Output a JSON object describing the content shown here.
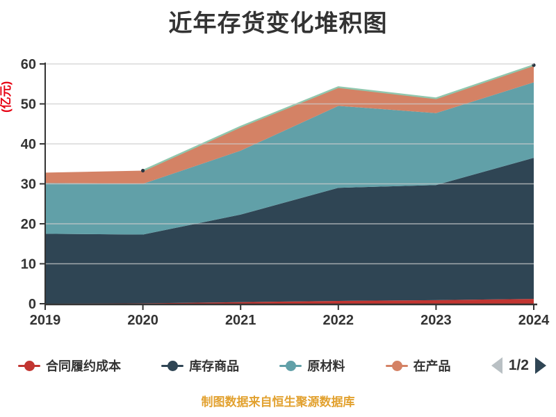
{
  "title": "近年存货变化堆积图",
  "caption": {
    "text": "制图数据来自恒生聚源数据库",
    "color": "#E2A12F"
  },
  "legend": {
    "pager": {
      "text": "1/2",
      "prev_icon": "left-triangle",
      "next_icon": "right-triangle",
      "prev_color": "#b9c0c4",
      "next_color": "#2f4554"
    }
  },
  "chart_data": {
    "type": "area",
    "stacked": true,
    "title": "近年存货变化堆积图",
    "xlabel": "",
    "ylabel": "(亿元)",
    "ylabel_color": "#e60012",
    "ylim": [
      0,
      60
    ],
    "yticks": [
      0,
      10,
      20,
      30,
      40,
      50,
      60
    ],
    "grid": true,
    "legend_position": "bottom",
    "categories": [
      "2019",
      "2020",
      "2021",
      "2022",
      "2023",
      "2024"
    ],
    "series": [
      {
        "name": "合同履约成本",
        "color": "#c23531",
        "values": [
          0,
          0.1,
          0.4,
          0.7,
          0.9,
          1.2
        ]
      },
      {
        "name": "库存商品",
        "color": "#2f4554",
        "values": [
          17.5,
          17.2,
          21.9,
          28.3,
          28.8,
          35.3
        ]
      },
      {
        "name": "原材料",
        "color": "#61a0a8",
        "values": [
          12.7,
          12.7,
          16.0,
          20.5,
          18.0,
          18.9
        ]
      },
      {
        "name": "在产品",
        "color": "#d48265",
        "values": [
          2.6,
          3.3,
          6.0,
          4.7,
          3.7,
          4.3
        ]
      }
    ],
    "stack_totals": [
      32.8,
      33.3,
      44.3,
      54.2,
      51.4,
      59.7
    ],
    "unlabeled_top_series": {
      "color": "#91c7ae",
      "values": [
        null,
        0,
        0,
        0,
        0,
        0
      ],
      "endpoint_dot_color": "#2b3642"
    },
    "axis_color": "#333333",
    "gridline_color": "#cccccc",
    "tick_label_color": "#333333"
  }
}
